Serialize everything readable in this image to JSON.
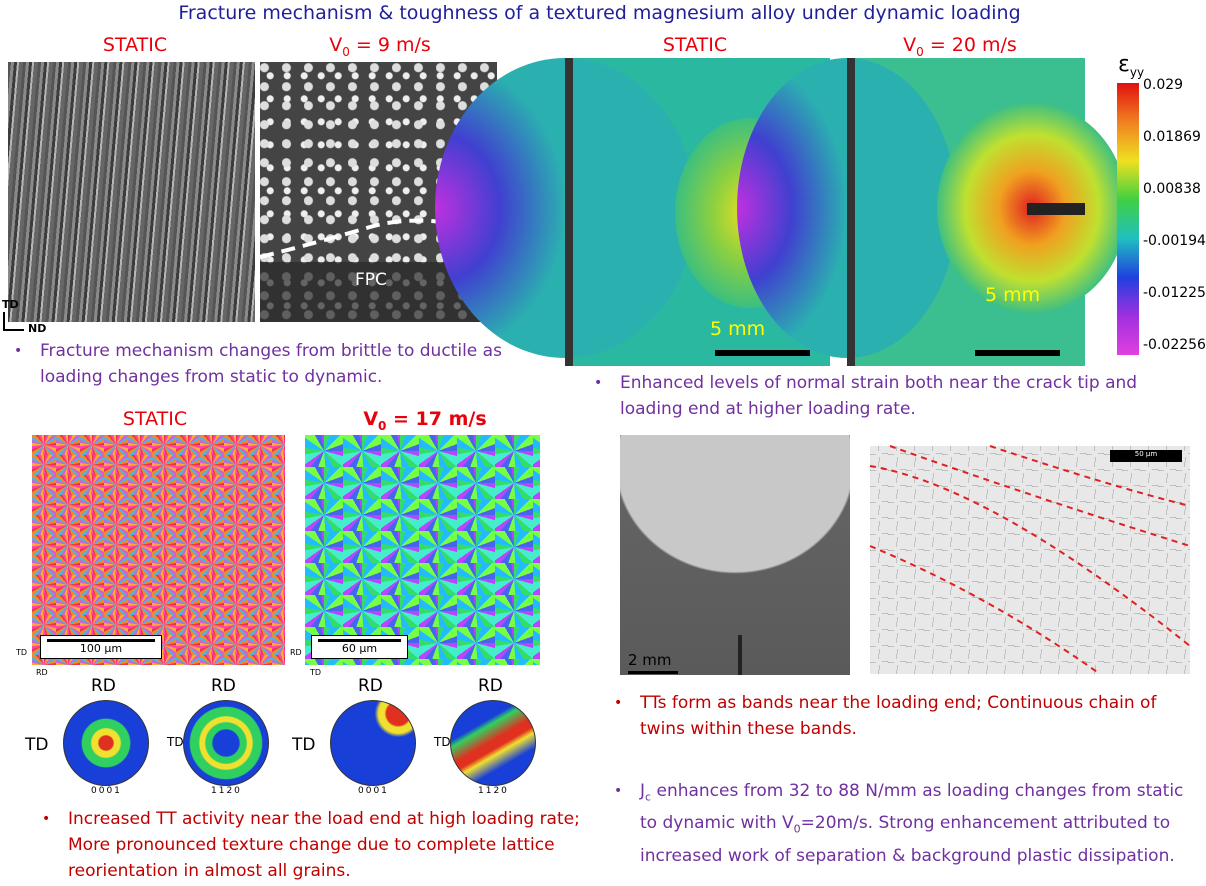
{
  "header": {
    "title": "Fracture mechanism & toughness of a textured magnesium alloy under dynamic loading"
  },
  "sem": {
    "static_label": "STATIC",
    "dynamic_label": {
      "pre": "V",
      "sub": "0",
      "post": " = 9 m/s"
    },
    "fpc": "FPC",
    "axis_td": "TD",
    "axis_nd": "ND",
    "bullet": "Fracture mechanism changes from brittle to ductile as loading changes from static to dynamic."
  },
  "dic": {
    "static_label": "STATIC",
    "dynamic_label": {
      "pre": "V",
      "sub": "0",
      "post": " = 20 m/s"
    },
    "scale_static": "5 mm",
    "scale_dynamic": "5 mm",
    "colorbar": {
      "symbol": "ε",
      "sub": "yy",
      "ticks": [
        "0.029",
        "0.01869",
        "0.00838",
        "-0.00194",
        "-0.01225",
        "-0.02256"
      ]
    },
    "bullet": "Enhanced levels of normal strain both near the crack tip and loading end at higher loading rate."
  },
  "ebsd": {
    "static_label": "STATIC",
    "dynamic_label": {
      "pre": "V",
      "sub": "0",
      "post": " = 17 m/s"
    },
    "scale_static": "100 µm",
    "scale_dynamic": "60 µm",
    "axes_static": [
      "TD",
      "RD"
    ],
    "axes_dynamic": [
      "RD",
      "TD"
    ],
    "pole_figures": [
      {
        "top": "RD",
        "left": "TD",
        "bottom": "0001"
      },
      {
        "top": "RD",
        "left": "TD",
        "bottom": "1120"
      },
      {
        "top": "RD",
        "left": "TD",
        "bottom": "0001"
      },
      {
        "top": "RD",
        "left": "TD",
        "bottom": "1120"
      }
    ],
    "bullet": "Increased TT activity near the load end at high loading rate; More pronounced texture change due to complete lattice reorientation in almost all grains."
  },
  "micro": {
    "scale_photo": "2 mm",
    "scale_micro": "50 µm",
    "bullet_twins": "TTs form as bands near the loading end; Continuous chain of twins within these bands.",
    "bullet_jc": [
      "J",
      "c",
      " enhances from 32 to 88 N/mm as loading changes from static to dynamic with V",
      "0",
      "=20m/s. Strong enhancement attributed to increased work of separation & background plastic dissipation."
    ]
  }
}
